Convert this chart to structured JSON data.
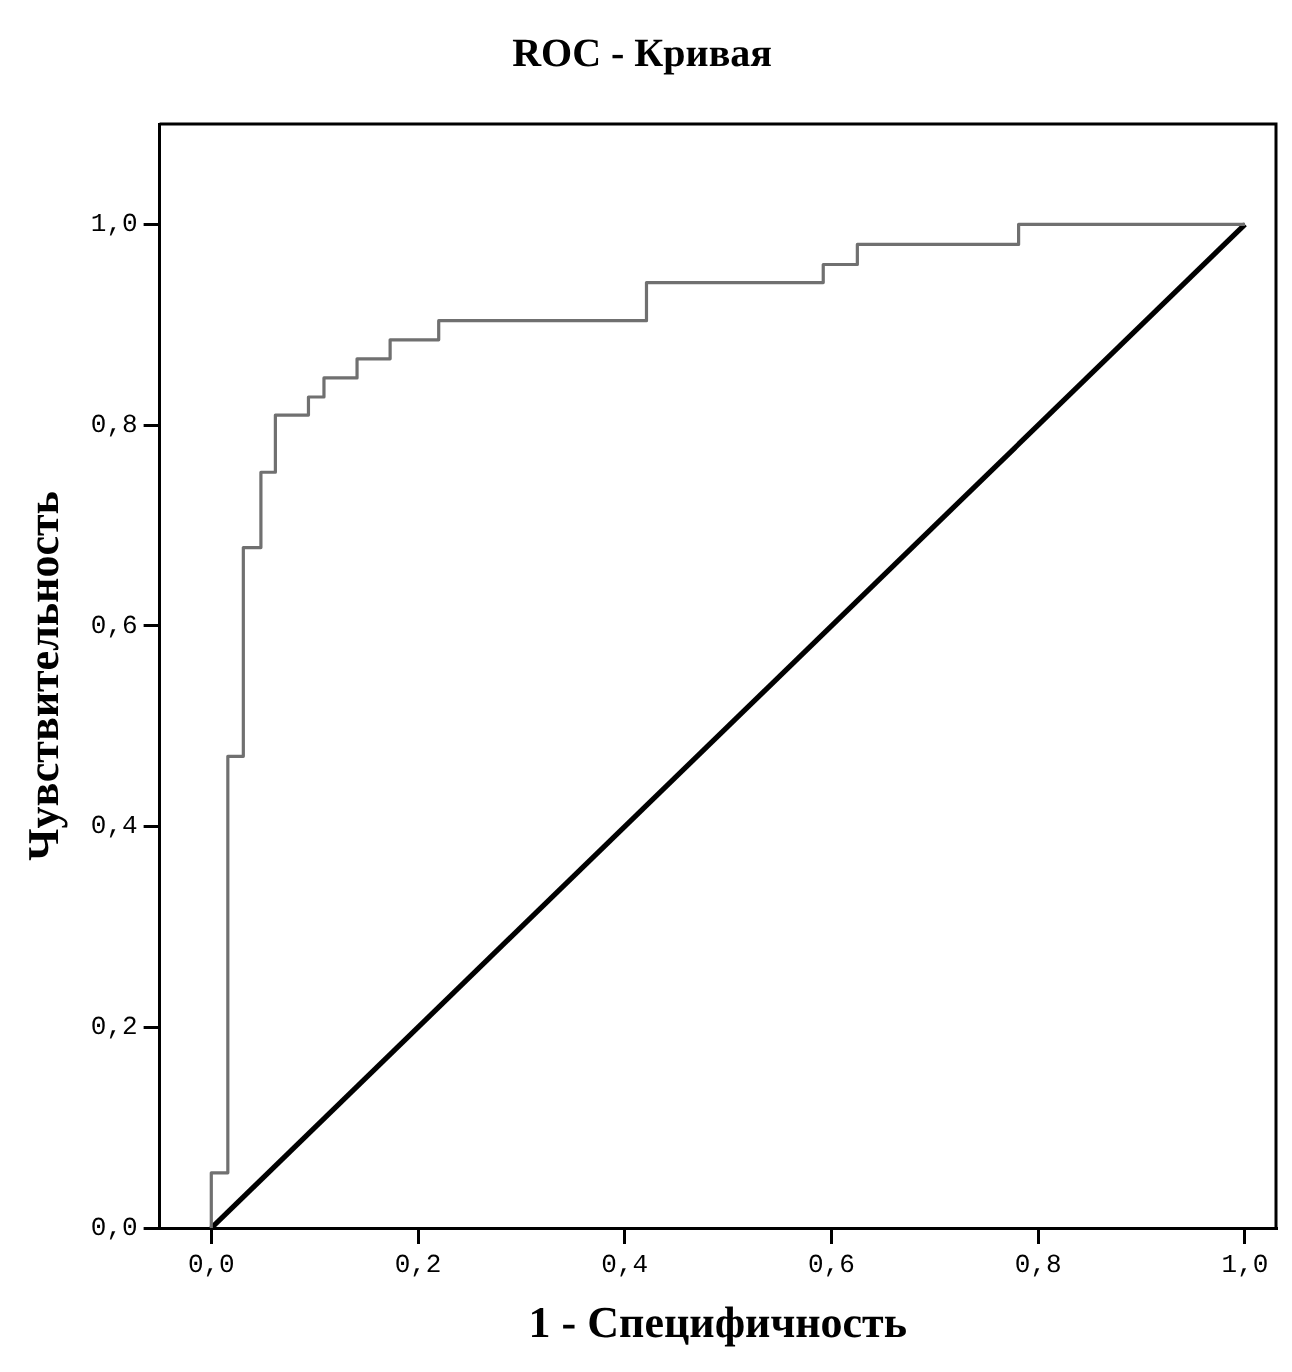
{
  "chart_data": {
    "type": "step",
    "title": "ROC - Кривая",
    "xlabel": "1 - Специфичность",
    "ylabel": "Чувствительность",
    "series": [
      {
        "type": "step",
        "color": "#707070",
        "x": [
          0,
          0,
          0.016,
          0.031,
          0.048,
          0.062,
          0.094,
          0.109,
          0.141,
          0.173,
          0.22,
          0.421,
          0.592,
          0.625,
          0.781,
          1
        ],
        "values": [
          0,
          0.055,
          0.47,
          0.678,
          0.753,
          0.81,
          0.828,
          0.847,
          0.866,
          0.885,
          0.904,
          0.942,
          0.96,
          0.98,
          1,
          1
        ]
      },
      {
        "type": "line",
        "color": "#000000",
        "x": [
          0,
          1
        ],
        "values": [
          0,
          1
        ]
      }
    ],
    "xlim": [
      -0.05,
      1.03
    ],
    "ylim": [
      0,
      1.1
    ],
    "xticks": [
      {
        "value": 0,
        "label": "0,0"
      },
      {
        "value": 0.2,
        "label": "0,2"
      },
      {
        "value": 0.4,
        "label": "0,4"
      },
      {
        "value": 0.6,
        "label": "0,6"
      },
      {
        "value": 0.8,
        "label": "0,8"
      },
      {
        "value": 1,
        "label": "1,0"
      }
    ],
    "yticks": [
      {
        "value": 0,
        "label": "0,0"
      },
      {
        "value": 0.2,
        "label": "0,2"
      },
      {
        "value": 0.4,
        "label": "0,4"
      },
      {
        "value": 0.6,
        "label": "0,6"
      },
      {
        "value": 0.8,
        "label": "0,8"
      },
      {
        "value": 1,
        "label": "1,0"
      }
    ],
    "grid": false,
    "legend": false,
    "marker": "none",
    "line_style": "solid"
  }
}
